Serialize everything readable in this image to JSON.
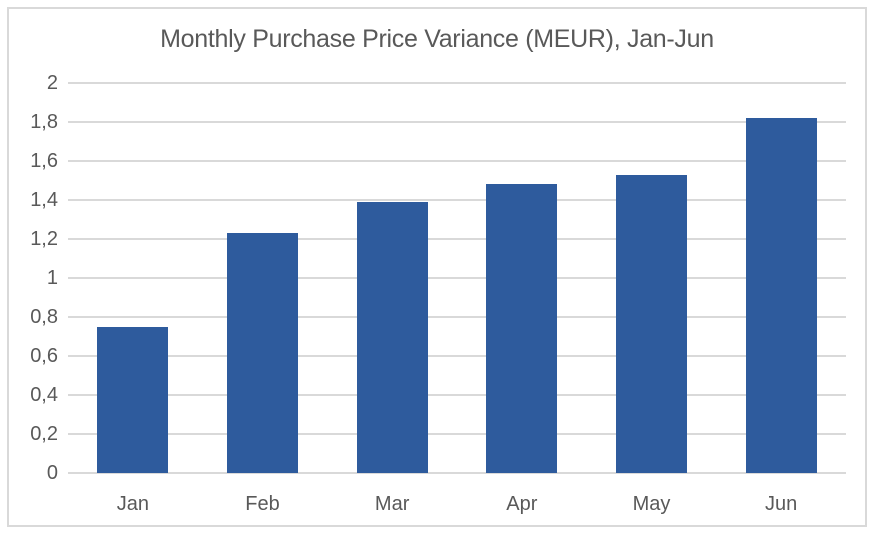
{
  "chart_data": {
    "type": "bar",
    "title": "Monthly Purchase Price Variance (MEUR), Jan-Jun",
    "categories": [
      "Jan",
      "Feb",
      "Mar",
      "Apr",
      "May",
      "Jun"
    ],
    "values": [
      0.75,
      1.23,
      1.39,
      1.48,
      1.53,
      1.82
    ],
    "xlabel": "",
    "ylabel": "",
    "ylim": [
      0,
      2
    ],
    "ytick_step": 0.2,
    "ytick_labels": [
      "0",
      "0,2",
      "0,4",
      "0,6",
      "0,8",
      "1",
      "1,2",
      "1,4",
      "1,6",
      "1,8",
      "2"
    ],
    "decimal_separator": ",",
    "grid": true,
    "legend": false,
    "colors": {
      "bar": "#2E5B9D",
      "gridline": "#D9D9D9",
      "axis_line": "#D9D9D9",
      "tick_label": "#595959",
      "title": "#595959",
      "frame_border": "#D9D9D9",
      "background": "#FFFFFF"
    }
  }
}
